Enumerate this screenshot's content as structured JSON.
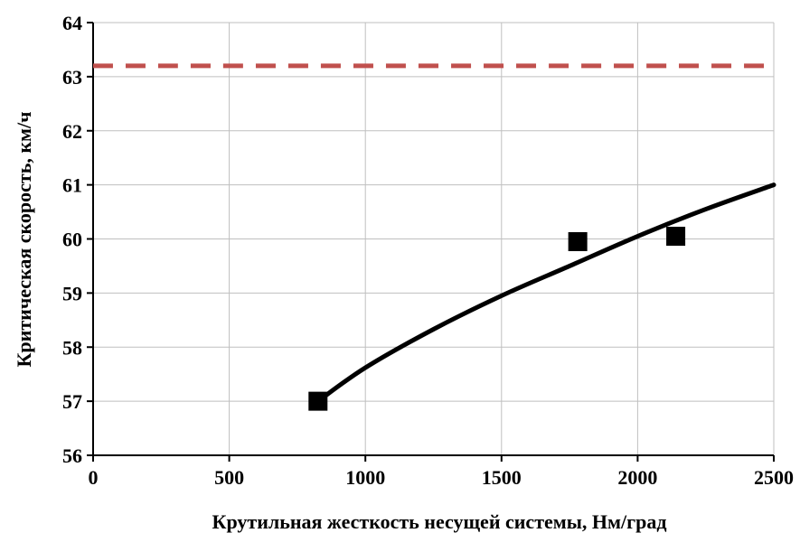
{
  "chart_data": {
    "type": "scatter",
    "title": "",
    "xlabel": "Крутильная жесткость несущей системы, Нм/град",
    "ylabel": "Критическая скорость, км/ч",
    "xlim": [
      0,
      2500
    ],
    "ylim": [
      56,
      64
    ],
    "xticks": [
      "0",
      "500",
      "1000",
      "1500",
      "2000",
      "2500"
    ],
    "yticks": [
      "56",
      "57",
      "58",
      "59",
      "60",
      "61",
      "62",
      "63",
      "64"
    ],
    "grid": true,
    "legend": "none",
    "series": [
      {
        "type": "scatter",
        "marker": "square",
        "color": "#000000",
        "points": [
          [
            826,
            57.0
          ],
          [
            1780,
            59.95
          ],
          [
            2140,
            60.05
          ]
        ]
      },
      {
        "type": "line",
        "style": "solid",
        "color": "#000000",
        "points": [
          [
            826,
            57.0
          ],
          [
            1000,
            57.62
          ],
          [
            1250,
            58.33
          ],
          [
            1500,
            58.95
          ],
          [
            1750,
            59.5
          ],
          [
            2000,
            60.05
          ],
          [
            2250,
            60.55
          ],
          [
            2500,
            61.0
          ]
        ]
      },
      {
        "type": "line",
        "style": "dashed",
        "color": "#c0504d",
        "points": [
          [
            0,
            63.2
          ],
          [
            2500,
            63.2
          ]
        ]
      }
    ]
  }
}
